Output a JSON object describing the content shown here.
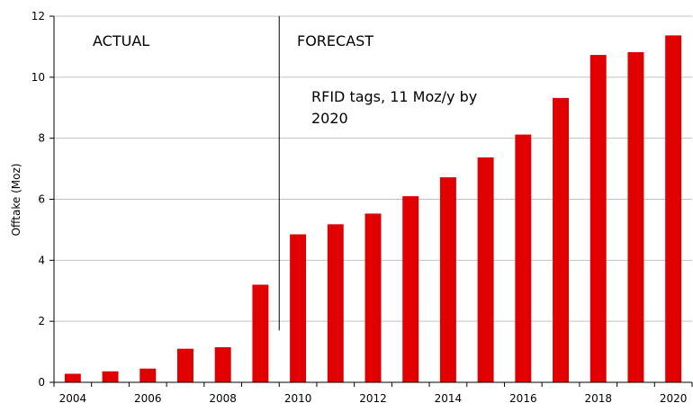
{
  "chart_data": {
    "type": "bar",
    "ylabel": "Offtake (Moz)",
    "ylim": [
      0,
      12
    ],
    "yticks": [
      0,
      2,
      4,
      6,
      8,
      10,
      12
    ],
    "xtick_labels": [
      "2004",
      "2006",
      "2008",
      "2010",
      "2012",
      "2014",
      "2016",
      "2018",
      "2020"
    ],
    "categories": [
      2004,
      2005,
      2006,
      2007,
      2008,
      2009,
      2010,
      2011,
      2012,
      2013,
      2014,
      2015,
      2016,
      2017,
      2018,
      2019,
      2020
    ],
    "values": [
      0.28,
      0.36,
      0.45,
      1.1,
      1.15,
      3.2,
      4.85,
      5.18,
      5.53,
      6.1,
      6.72,
      7.37,
      8.12,
      9.32,
      10.73,
      10.82,
      11.37
    ],
    "bar_color": "#e00000",
    "grid": "horizontal",
    "divider_x": 2009.5,
    "annotations": {
      "actual": "ACTUAL",
      "forecast": "FORECAST",
      "note_line1": "RFID tags,  11 Moz/y by",
      "note_line2": "2020"
    }
  }
}
